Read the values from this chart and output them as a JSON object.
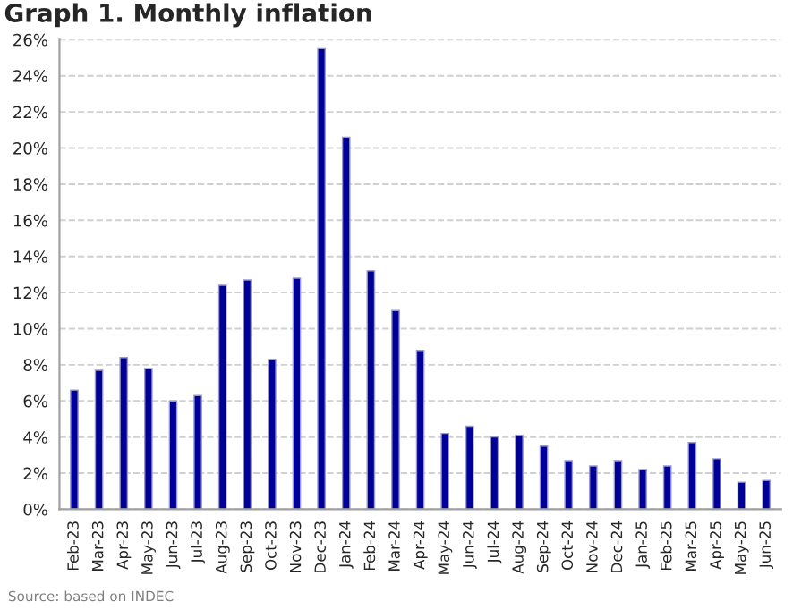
{
  "chart_data": {
    "type": "bar",
    "title": "Graph 1. Monthly inflation",
    "categories": [
      "Feb-23",
      "Mar-23",
      "Apr-23",
      "May-23",
      "Jun-23",
      "Jul-23",
      "Aug-23",
      "Sep-23",
      "Oct-23",
      "Nov-23",
      "Dec-23",
      "Jan-24",
      "Feb-24",
      "Mar-24",
      "Apr-24",
      "May-24",
      "Jun-24",
      "Jul-24",
      "Aug-24",
      "Sep-24",
      "Oct-24",
      "Nov-24",
      "Dec-24",
      "Jan-25",
      "Feb-25",
      "Mar-25",
      "Apr-25",
      "May-25",
      "Jun-25"
    ],
    "values": [
      6.6,
      7.7,
      8.4,
      7.8,
      6.0,
      6.3,
      12.4,
      12.7,
      8.3,
      12.8,
      25.5,
      20.6,
      13.2,
      11.0,
      8.8,
      4.2,
      4.6,
      4.0,
      4.1,
      3.5,
      2.7,
      2.4,
      2.7,
      2.2,
      2.4,
      3.7,
      2.8,
      1.5,
      1.6
    ],
    "color": "#000099",
    "ylim": [
      0,
      26
    ],
    "yticks": [
      {
        "value": 0,
        "label": "0%"
      },
      {
        "value": 2,
        "label": "2%"
      },
      {
        "value": 4,
        "label": "4%"
      },
      {
        "value": 6,
        "label": "6%"
      },
      {
        "value": 8,
        "label": "8%"
      },
      {
        "value": 10,
        "label": "10%"
      },
      {
        "value": 12,
        "label": "12%"
      },
      {
        "value": 14,
        "label": "14%"
      },
      {
        "value": 16,
        "label": "16%"
      },
      {
        "value": 18,
        "label": "18%"
      },
      {
        "value": 20,
        "label": "20%"
      },
      {
        "value": 22,
        "label": "22%"
      },
      {
        "value": 24,
        "label": "24%"
      },
      {
        "value": 26,
        "label": "26%"
      }
    ],
    "grid": "y",
    "annotations": [
      "Source: based on INDEC"
    ]
  }
}
